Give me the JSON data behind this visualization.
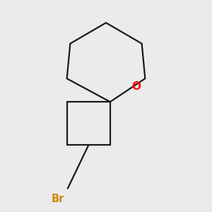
{
  "bg_color": "#ebebeb",
  "bond_color": "#1a1a1a",
  "oxygen_color": "#ff0000",
  "bromine_color": "#cc8800",
  "line_width": 1.6,
  "br_label": "Br",
  "o_label": "O"
}
